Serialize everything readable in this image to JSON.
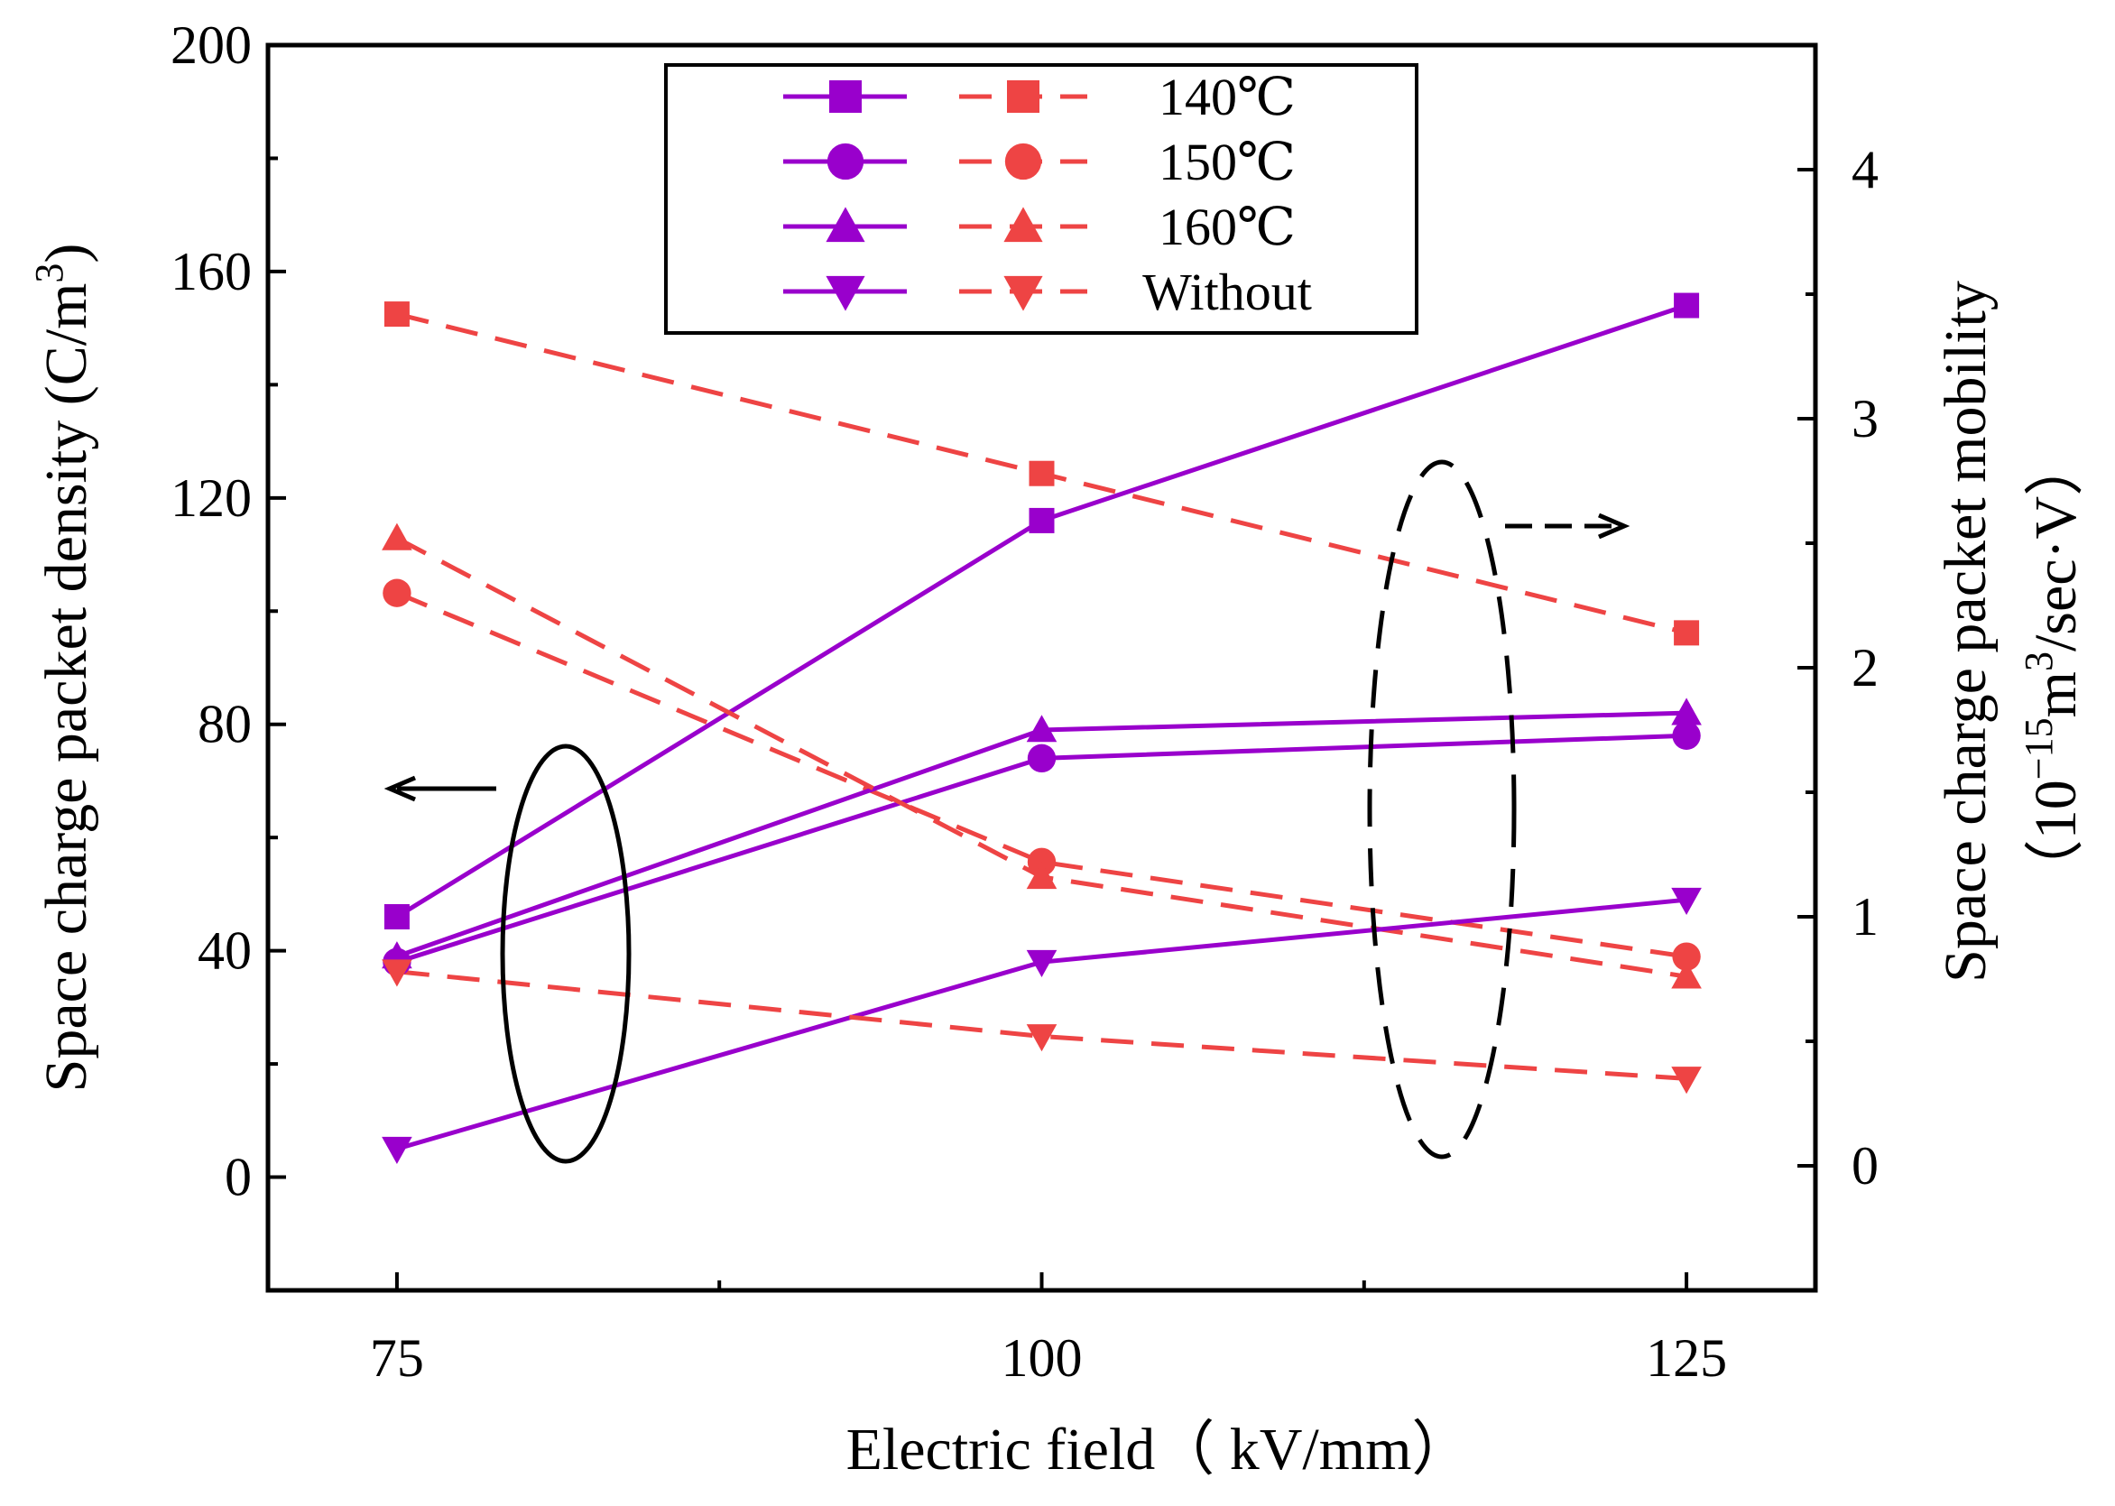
{
  "chart_data": {
    "type": "line",
    "xlabel": "Electric field（ kV/mm）",
    "ylabel_left": "Space charge packet density (C/m",
    "ylabel_left_sup": "3",
    "ylabel_left_close": ")",
    "ylabel_right_line1": "Space charge packet mobility",
    "ylabel_right_line2": "（10",
    "ylabel_right_sup1": "−15",
    "ylabel_right_mid": "m",
    "ylabel_right_sup2": "3",
    "ylabel_right_tail": "/sec·V）",
    "x": [
      75,
      100,
      125
    ],
    "xlim": [
      70,
      130
    ],
    "x_ticks": [
      75,
      100,
      125
    ],
    "ylim_left": [
      -20,
      200
    ],
    "y_ticks_left": [
      0,
      40,
      80,
      120,
      160,
      200
    ],
    "ylim_right": [
      -0.5,
      4.5
    ],
    "y_ticks_right": [
      0,
      1,
      2,
      3,
      4
    ],
    "density_color": "#9900cc",
    "mobility_color": "#ee4444",
    "series": [
      {
        "name": "140℃",
        "marker": "square",
        "density": [
          46,
          116,
          154
        ],
        "mobility": [
          3.42,
          2.78,
          2.14
        ]
      },
      {
        "name": "150℃",
        "marker": "circle",
        "density": [
          38,
          74,
          78
        ],
        "mobility": [
          2.3,
          1.22,
          0.84
        ]
      },
      {
        "name": "160℃",
        "marker": "triangle-up",
        "density": [
          39,
          79,
          82
        ],
        "mobility": [
          2.52,
          1.16,
          0.76
        ]
      },
      {
        "name": "Without",
        "marker": "triangle-down",
        "density": [
          5,
          38,
          49
        ],
        "mobility": [
          0.78,
          0.52,
          0.35
        ]
      }
    ],
    "legend_position": "top-center",
    "annotations": [
      "left-arrow near solid ellipse (density)",
      "right-arrow near dashed ellipse (mobility)"
    ]
  }
}
